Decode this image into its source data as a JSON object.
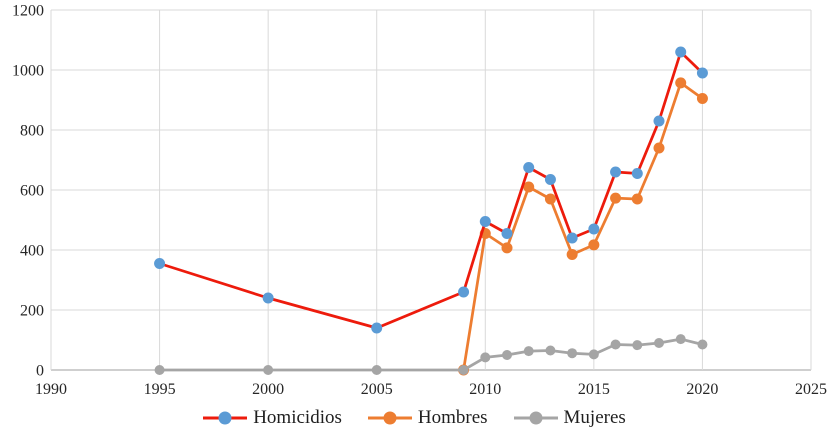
{
  "chart_data": {
    "type": "line",
    "title": "",
    "xlabel": "",
    "ylabel": "",
    "xlim": [
      1990,
      2025
    ],
    "ylim": [
      0,
      1200
    ],
    "x_ticks": [
      1990,
      1995,
      2000,
      2005,
      2010,
      2015,
      2020,
      2025
    ],
    "y_ticks": [
      0,
      200,
      400,
      600,
      800,
      1000,
      1200
    ],
    "grid": "on",
    "legend_position": "bottom",
    "x": [
      1995,
      2000,
      2005,
      2009,
      2010,
      2011,
      2012,
      2013,
      2014,
      2015,
      2016,
      2017,
      2018,
      2019,
      2020
    ],
    "series": [
      {
        "name": "Homicidios",
        "line_color": "#ed1b0c",
        "marker_color": "#5b9bd5",
        "marker_radius": 5.5,
        "values": [
          355,
          240,
          140,
          260,
          495,
          455,
          675,
          635,
          440,
          470,
          660,
          655,
          830,
          1060,
          990
        ]
      },
      {
        "name": "Hombres",
        "line_color": "#ed7d31",
        "marker_color": "#ed7d31",
        "marker_radius": 5.5,
        "values": [
          null,
          null,
          null,
          0,
          455,
          407,
          610,
          570,
          385,
          417,
          573,
          570,
          740,
          957,
          905
        ]
      },
      {
        "name": "Mujeres",
        "line_color": "#a5a5a5",
        "marker_color": "#a5a5a5",
        "marker_radius": 5,
        "values": [
          0,
          0,
          0,
          0,
          42,
          50,
          63,
          65,
          56,
          52,
          85,
          83,
          90,
          103,
          85
        ]
      }
    ],
    "colors": {
      "grid": "#d9d9d9",
      "axis": "#bfbfbf",
      "text": "#262626"
    }
  }
}
